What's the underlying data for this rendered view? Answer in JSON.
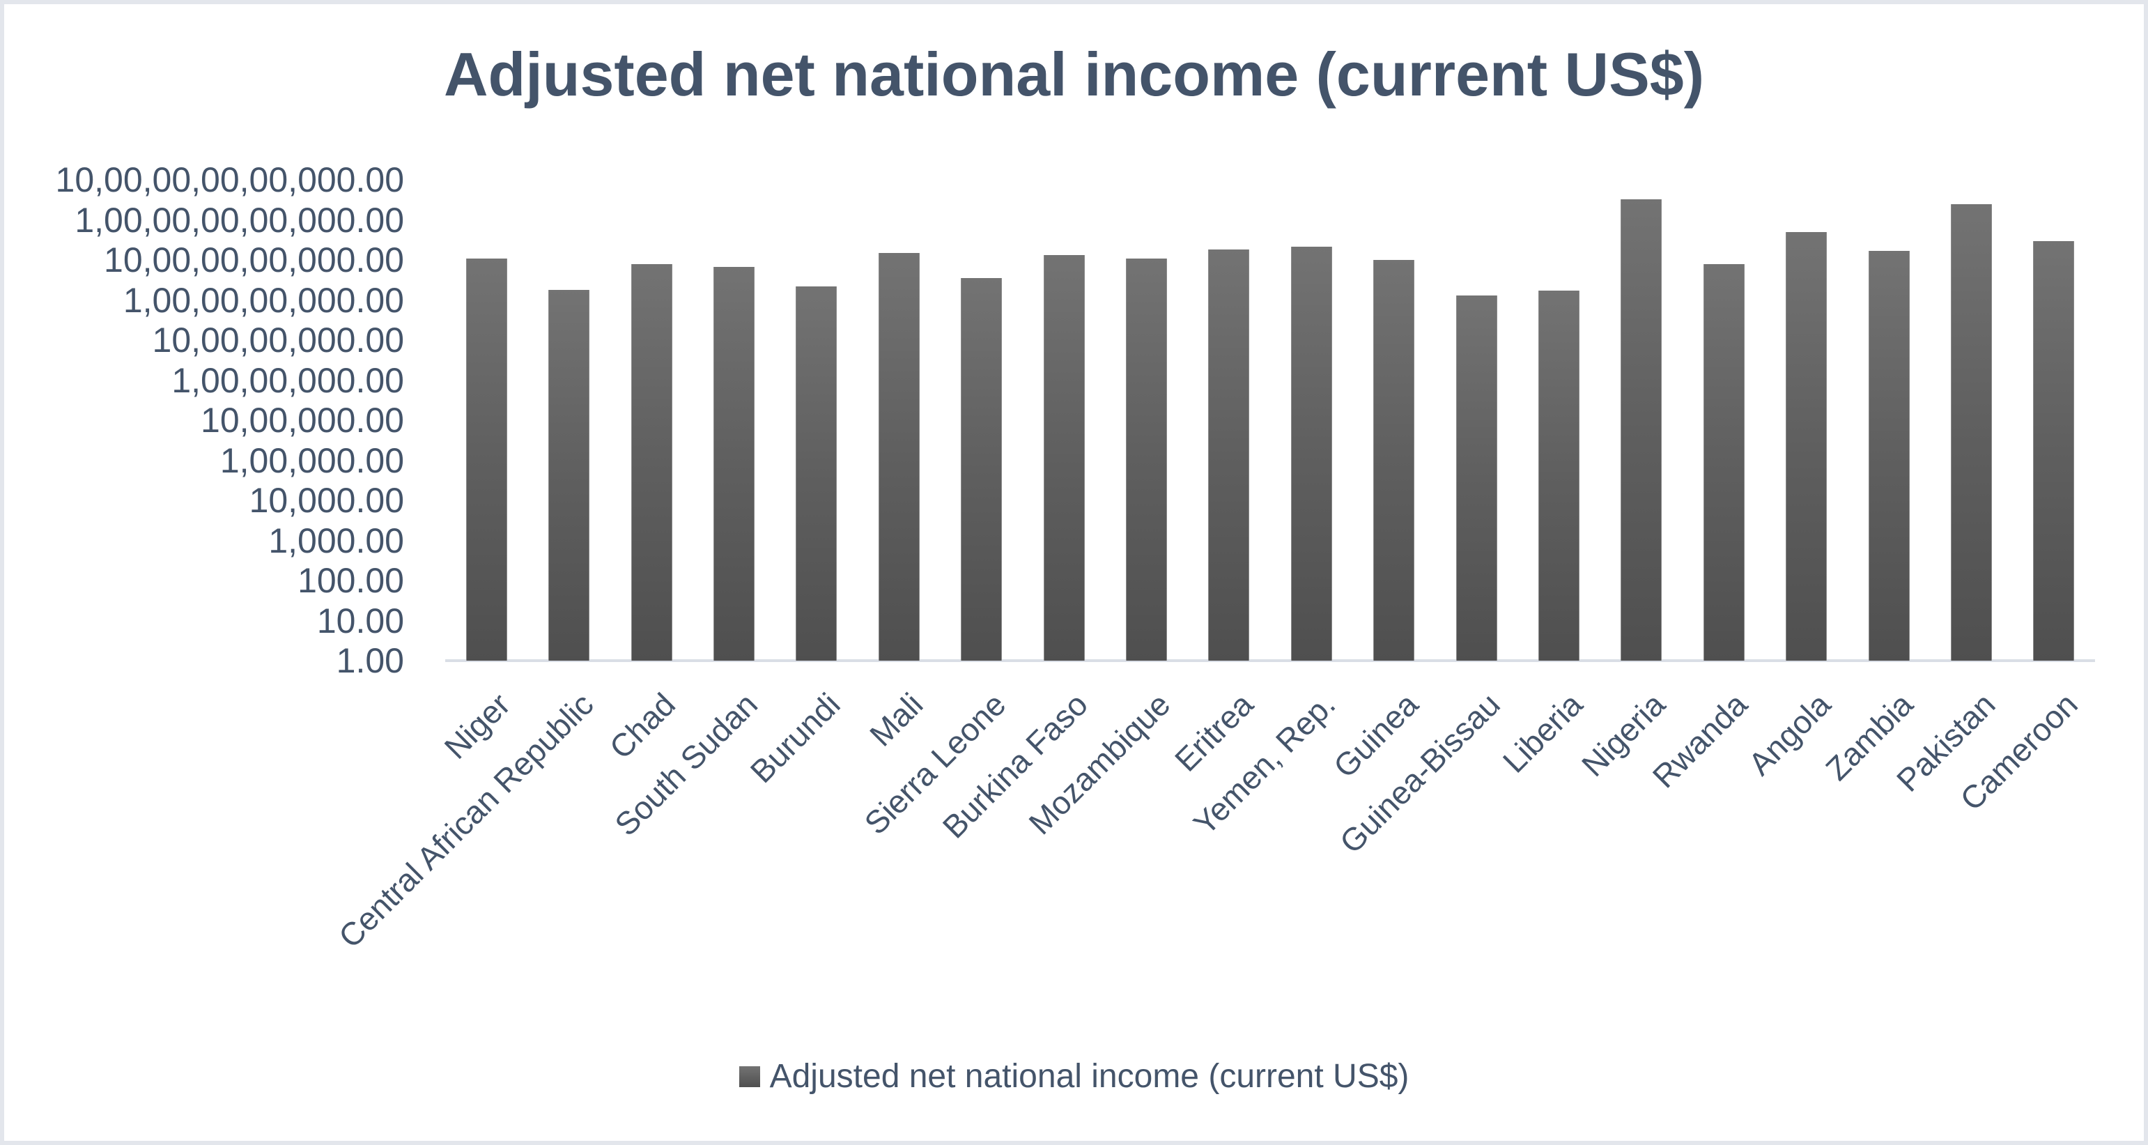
{
  "chart_data": {
    "type": "bar",
    "title": "Adjusted net national income (current US$)",
    "xlabel": "",
    "ylabel": "",
    "yscale": "log",
    "ylim": [
      1,
      1000000000000
    ],
    "y_ticks": [
      "10,00,00,00,00,000.00",
      "1,00,00,00,00,000.00",
      "10,00,00,00,000.00",
      "1,00,00,00,000.00",
      "10,00,00,000.00",
      "1,00,00,000.00",
      "10,00,000.00",
      "1,00,000.00",
      "10,000.00",
      "1,000.00",
      "100.00",
      "10.00",
      "1.00"
    ],
    "y_tick_values": [
      1000000000000.0,
      100000000000.0,
      10000000000.0,
      1000000000.0,
      100000000.0,
      10000000.0,
      1000000.0,
      100000.0,
      10000.0,
      1000.0,
      100,
      10,
      1
    ],
    "categories": [
      "Niger",
      "Central African Republic",
      "Chad",
      "South Sudan",
      "Burundi",
      "Mali",
      "Sierra Leone",
      "Burkina Faso",
      "Mozambique",
      "Eritrea",
      "Yemen, Rep.",
      "Guinea",
      "Guinea-Bissau",
      "Liberia",
      "Nigeria",
      "Rwanda",
      "Angola",
      "Zambia",
      "Pakistan",
      "Cameroon"
    ],
    "series": [
      {
        "name": "Adjusted net national income (current US$)",
        "color": "#5F5F5F",
        "values": [
          11000000000,
          1800000000,
          7900000000,
          6700000000,
          2200000000,
          15000000000,
          3500000000,
          13000000000,
          11000000000,
          18000000000,
          21000000000,
          10000000000,
          1300000000,
          1700000000,
          330000000000,
          7900000000,
          50000000000,
          17000000000,
          250000000000,
          29000000000
        ]
      }
    ],
    "grid": false,
    "legend_position": "bottom"
  },
  "legend": {
    "label": "Adjusted net national income (current US$)"
  },
  "colors": {
    "text": "#44546A",
    "bar_top": "#737373",
    "bar_bottom": "#4F4F4F",
    "axis": "#D9DEE6",
    "border": "#E3E6EC"
  }
}
